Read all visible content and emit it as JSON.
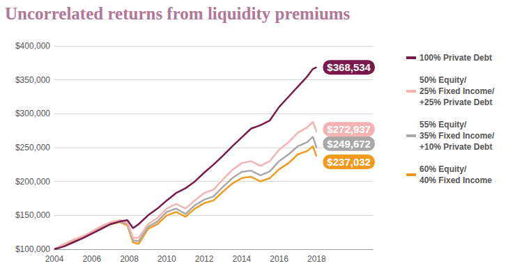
{
  "chart_data": {
    "type": "line",
    "title": "Uncorrelated returns from liquidity premiums",
    "x": [
      2004,
      2004.5,
      2005,
      2005.5,
      2006,
      2006.5,
      2007,
      2007.5,
      2007.9,
      2008.2,
      2008.5,
      2009,
      2009.5,
      2010,
      2010.5,
      2011,
      2011.5,
      2012,
      2012.5,
      2013,
      2013.5,
      2014,
      2014.5,
      2015,
      2015.5,
      2016,
      2016.5,
      2017,
      2017.5,
      2017.8,
      2018
    ],
    "series": [
      {
        "name": "100% Private Debt",
        "color": "#7a1a4a",
        "values": [
          100000,
          104000,
          110000,
          116000,
          123000,
          130000,
          137000,
          141000,
          143000,
          131000,
          137000,
          150000,
          160000,
          172000,
          183000,
          190000,
          200000,
          213000,
          225000,
          238000,
          252000,
          265000,
          278000,
          283000,
          290000,
          310000,
          325000,
          340000,
          355000,
          366000,
          368534
        ],
        "value_labels": [
          null,
          null,
          null,
          null,
          null,
          null,
          null,
          null,
          null,
          null,
          null,
          null,
          null,
          null,
          null,
          null,
          null,
          null,
          null,
          null,
          null,
          null,
          null,
          null,
          null,
          null,
          null,
          null,
          null,
          null,
          "$368,534"
        ]
      },
      {
        "name": "50% Equity/25% Fixed Income/+25% Private Debt",
        "color": "#f4b3b3",
        "values": [
          100000,
          107000,
          114000,
          119000,
          126000,
          134000,
          140000,
          143000,
          139000,
          117000,
          117000,
          137000,
          146000,
          160000,
          167000,
          160000,
          172000,
          183000,
          188000,
          203000,
          217000,
          227000,
          230000,
          223000,
          230000,
          247000,
          258000,
          272000,
          280000,
          288000,
          272937
        ],
        "value_labels": [
          null,
          null,
          null,
          null,
          null,
          null,
          null,
          null,
          null,
          null,
          null,
          null,
          null,
          null,
          null,
          null,
          null,
          null,
          null,
          null,
          null,
          null,
          null,
          null,
          null,
          null,
          null,
          null,
          null,
          null,
          "$272,937"
        ]
      },
      {
        "name": "55% Equity/35% Fixed Income/+10% Private Debt",
        "color": "#a8a8a8",
        "values": [
          100000,
          107000,
          113000,
          118000,
          125000,
          132000,
          138000,
          141000,
          137000,
          113000,
          112000,
          133000,
          141000,
          155000,
          160000,
          152000,
          165000,
          173000,
          178000,
          192000,
          205000,
          214000,
          216000,
          209000,
          215000,
          230000,
          240000,
          252000,
          258000,
          266000,
          249672
        ],
        "value_labels": [
          null,
          null,
          null,
          null,
          null,
          null,
          null,
          null,
          null,
          null,
          null,
          null,
          null,
          null,
          null,
          null,
          null,
          null,
          null,
          null,
          null,
          null,
          null,
          null,
          null,
          null,
          null,
          null,
          null,
          null,
          "$249,672"
        ]
      },
      {
        "name": "60% Equity/40% Fixed Income",
        "color": "#f39a1e",
        "values": [
          100000,
          107000,
          112000,
          117000,
          124000,
          131000,
          137000,
          140000,
          135000,
          110000,
          108000,
          130000,
          137000,
          150000,
          155000,
          148000,
          160000,
          168000,
          172000,
          185000,
          197000,
          205000,
          207000,
          200000,
          205000,
          218000,
          227000,
          240000,
          245000,
          252000,
          237032
        ],
        "value_labels": [
          null,
          null,
          null,
          null,
          null,
          null,
          null,
          null,
          null,
          null,
          null,
          null,
          null,
          null,
          null,
          null,
          null,
          null,
          null,
          null,
          null,
          null,
          null,
          null,
          null,
          null,
          null,
          null,
          null,
          null,
          "$237,032"
        ]
      }
    ],
    "xlim": [
      2004,
      2021
    ],
    "xticks": [
      2004,
      2006,
      2008,
      2010,
      2012,
      2014,
      2016,
      2018
    ],
    "ylim": [
      100000,
      400000
    ],
    "yticks": [
      {
        "value": 100000,
        "label": "$100,000"
      },
      {
        "value": 150000,
        "label": "$150,000"
      },
      {
        "value": 200000,
        "label": "$200,000"
      },
      {
        "value": 250000,
        "label": "$250,000"
      },
      {
        "value": 300000,
        "label": "$300,000"
      },
      {
        "value": 350000,
        "label": "$350,000"
      },
      {
        "value": 400000,
        "label": "$400,000"
      }
    ],
    "grid": true,
    "legend": "right"
  }
}
